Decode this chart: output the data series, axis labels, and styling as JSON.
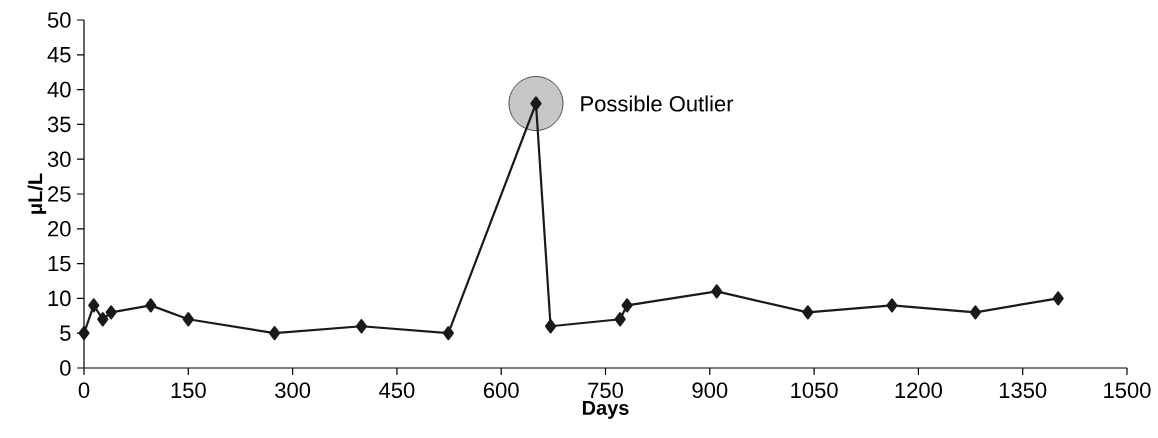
{
  "chart_data": {
    "type": "line",
    "xlabel": "Days",
    "ylabel": "μL/L",
    "x": [
      0,
      14,
      27,
      39,
      96,
      150,
      274,
      399,
      524,
      650,
      671,
      771,
      781,
      910,
      1041,
      1162,
      1282,
      1401
    ],
    "series": [
      {
        "color": "#1a1a1a",
        "values": [
          5,
          9,
          7,
          8,
          9,
          7,
          5,
          6,
          5,
          38,
          6,
          7,
          9,
          11,
          8,
          9,
          8,
          10
        ]
      }
    ],
    "xlim": [
      0,
      1500
    ],
    "xticks": [
      0,
      150,
      300,
      450,
      600,
      750,
      900,
      1050,
      1200,
      1350,
      1500
    ],
    "ylim": [
      0,
      50
    ],
    "yticks": [
      0,
      5,
      10,
      15,
      20,
      25,
      30,
      35,
      40,
      45,
      50
    ],
    "annotations": [
      {
        "text": "Possible Outlier",
        "x": 650,
        "y": 38
      }
    ],
    "grid": false,
    "marker": "diamond",
    "line_style": "solid"
  }
}
